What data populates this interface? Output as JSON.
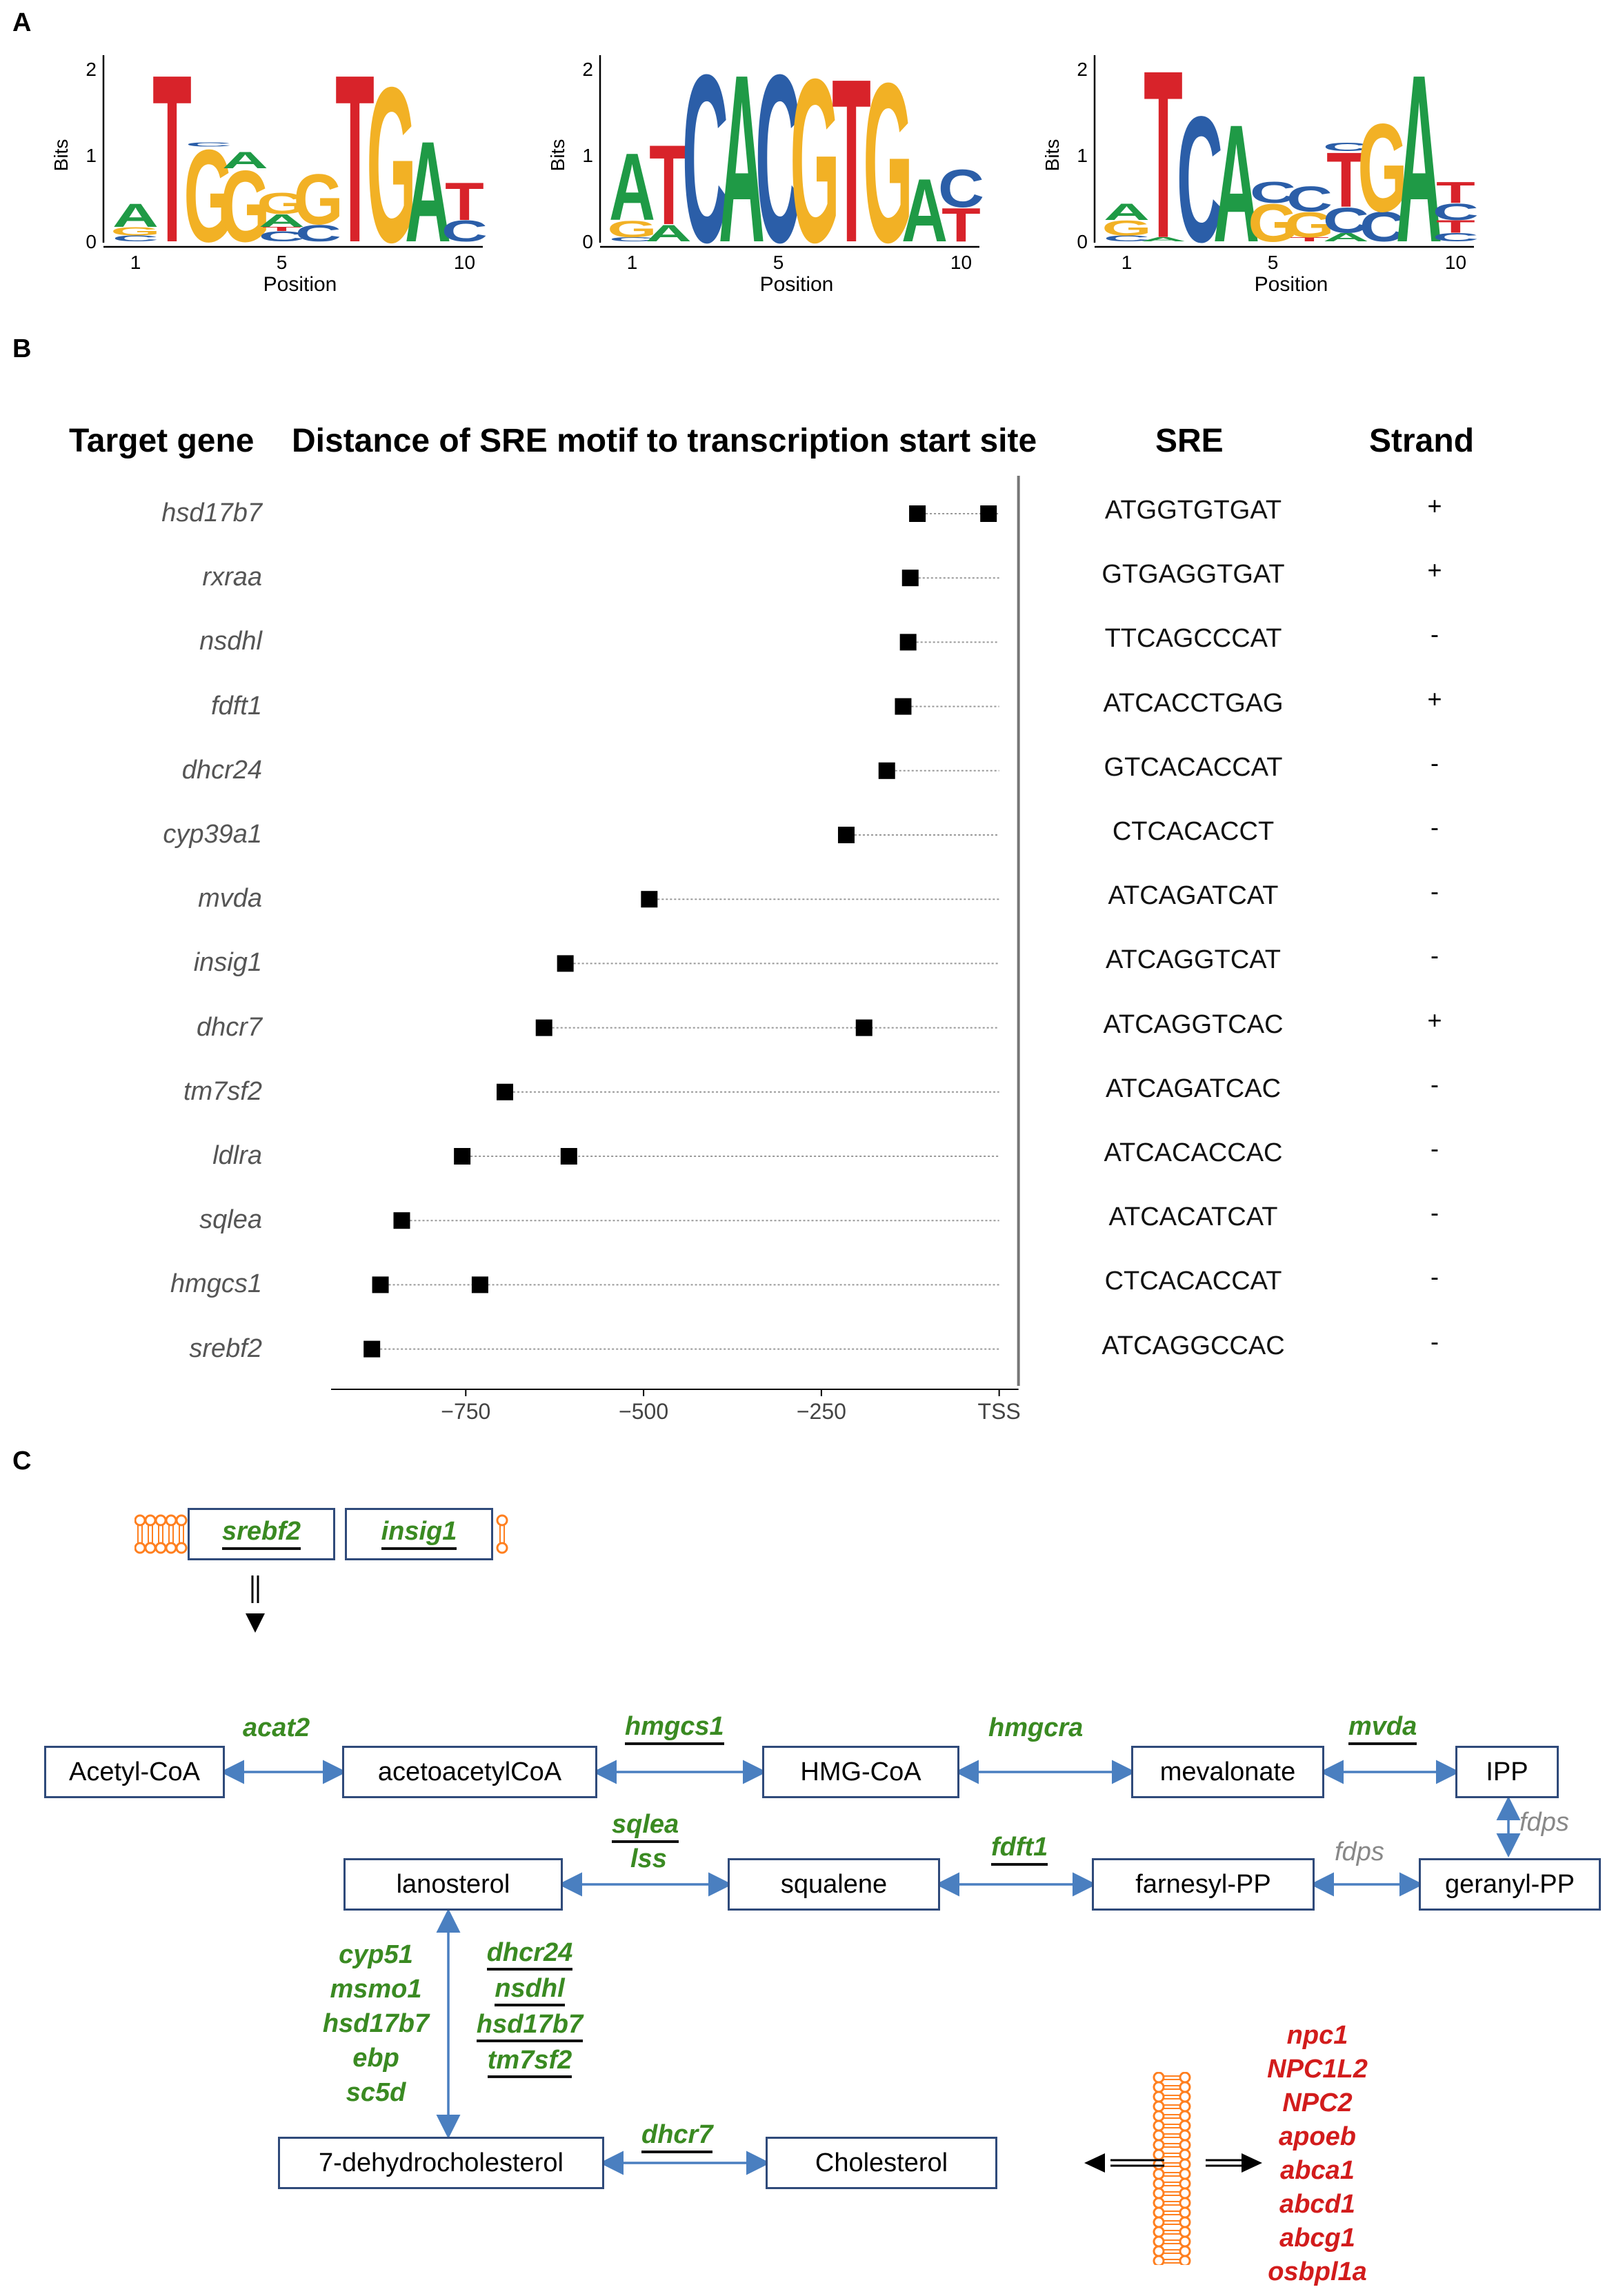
{
  "panel_a": {
    "letter": "A",
    "y_label": "Bits",
    "x_label": "Position",
    "y_ticks": [
      "0",
      "1",
      "2"
    ],
    "x_ticks": [
      "1",
      "5",
      "10"
    ],
    "logos": [
      {
        "letters": [
          [
            [
              "C",
              0.07
            ],
            [
              "G",
              0.1
            ],
            [
              "A",
              0.28
            ]
          ],
          [
            [
              "T",
              2.0
            ]
          ],
          [
            [
              "G",
              1.1
            ],
            [
              "C",
              0.05
            ]
          ],
          [
            [
              "G",
              0.85
            ],
            [
              "A",
              0.2
            ]
          ],
          [
            [
              "C",
              0.12
            ],
            [
              "T",
              0.05
            ],
            [
              "A",
              0.15
            ],
            [
              "G",
              0.25
            ]
          ],
          [
            [
              "C",
              0.2
            ],
            [
              "G",
              0.6
            ]
          ],
          [
            [
              "T",
              2.0
            ]
          ],
          [
            [
              "G",
              1.85
            ]
          ],
          [
            [
              "A",
              1.2
            ]
          ],
          [
            [
              "C",
              0.25
            ],
            [
              "T",
              0.45
            ]
          ]
        ]
      },
      {
        "letters": [
          [
            [
              "C",
              0.05
            ],
            [
              "G",
              0.2
            ],
            [
              "A",
              0.8
            ]
          ],
          [
            [
              "A",
              0.2
            ],
            [
              "T",
              0.95
            ]
          ],
          [
            [
              "C",
              2.0
            ]
          ],
          [
            [
              "A",
              2.0
            ]
          ],
          [
            [
              "C",
              2.0
            ]
          ],
          [
            [
              "G",
              1.95
            ]
          ],
          [
            [
              "T",
              1.95
            ]
          ],
          [
            [
              "G",
              1.9
            ]
          ],
          [
            [
              "A",
              0.75
            ]
          ],
          [
            [
              "T",
              0.4
            ],
            [
              "C",
              0.45
            ]
          ]
        ]
      },
      {
        "letters": [
          [
            [
              "C",
              0.07
            ],
            [
              "G",
              0.18
            ],
            [
              "A",
              0.2
            ]
          ],
          [
            [
              "A",
              0.05
            ],
            [
              "T",
              2.0
            ]
          ],
          [
            [
              "C",
              1.5
            ]
          ],
          [
            [
              "A",
              1.4
            ]
          ],
          [
            [
              "G",
              0.45
            ],
            [
              "C",
              0.25
            ]
          ],
          [
            [
              "T",
              0.05
            ],
            [
              "G",
              0.3
            ],
            [
              "C",
              0.3
            ]
          ],
          [
            [
              "A",
              0.1
            ],
            [
              "C",
              0.3
            ],
            [
              "T",
              0.65
            ],
            [
              "C",
              0.1
            ]
          ],
          [
            [
              "C",
              0.35
            ],
            [
              "G",
              1.05
            ]
          ],
          [
            [
              "A",
              2.0
            ]
          ],
          [
            [
              "C",
              0.1
            ],
            [
              "T",
              0.15
            ],
            [
              "C",
              0.2
            ],
            [
              "T",
              0.25
            ]
          ]
        ]
      }
    ]
  },
  "panel_b": {
    "letter": "B",
    "headers": {
      "target_gene": "Target gene",
      "distance": "Distance of SRE motif to transcription start site",
      "sre": "SRE",
      "strand": "Strand"
    },
    "x_ticks": [
      "−750",
      "−500",
      "−250",
      "TSS"
    ],
    "chart_data": {
      "type": "scatter",
      "xlim": [
        -920,
        0
      ],
      "x_tick_values": [
        -750,
        -500,
        -250,
        0
      ],
      "rows": [
        {
          "gene": "hsd17b7",
          "positions": [
            -115,
            -15
          ],
          "sre": "ATGGTGTGAT",
          "strand": "+"
        },
        {
          "gene": "rxraa",
          "positions": [
            -125
          ],
          "sre": "GTGAGGTGAT",
          "strand": "+"
        },
        {
          "gene": "nsdhl",
          "positions": [
            -128
          ],
          "sre": "TTCAGCCCAT",
          "strand": "-"
        },
        {
          "gene": "fdft1",
          "positions": [
            -135
          ],
          "sre": "ATCACCTGAG",
          "strand": "+"
        },
        {
          "gene": "dhcr24",
          "positions": [
            -158
          ],
          "sre": "GTCACACCAT",
          "strand": "-"
        },
        {
          "gene": "cyp39a1",
          "positions": [
            -215
          ],
          "sre": "CTCACACCT",
          "strand": "-"
        },
        {
          "gene": "mvda",
          "positions": [
            -492
          ],
          "sre": "ATCAGATCAT",
          "strand": "-"
        },
        {
          "gene": "insig1",
          "positions": [
            -610
          ],
          "sre": "ATCAGGTCAT",
          "strand": "-"
        },
        {
          "gene": "dhcr7",
          "positions": [
            -640,
            -190
          ],
          "sre": "ATCAGGTCAC",
          "strand": "+"
        },
        {
          "gene": "tm7sf2",
          "positions": [
            -695
          ],
          "sre": "ATCAGATCAC",
          "strand": "-"
        },
        {
          "gene": "ldlra",
          "positions": [
            -755,
            -605
          ],
          "sre": "ATCACACCAC",
          "strand": "-"
        },
        {
          "gene": "sqlea",
          "positions": [
            -840
          ],
          "sre": "ATCACATCAT",
          "strand": "-"
        },
        {
          "gene": "hmgcs1",
          "positions": [
            -870,
            -730
          ],
          "sre": "CTCACACCAT",
          "strand": "-"
        },
        {
          "gene": "srebf2",
          "positions": [
            -882
          ],
          "sre": "ATCAGGCCAC",
          "strand": "-"
        }
      ]
    }
  },
  "panel_c": {
    "letter": "C",
    "membrane_genes": [
      "srebf2",
      "insig1"
    ],
    "metabolites": {
      "acetyl_coa": "Acetyl-CoA",
      "acetoacetyl_coa": "acetoacetylCoA",
      "hmg_coa": "HMG-CoA",
      "mevalonate": "mevalonate",
      "ipp": "IPP",
      "lanosterol": "lanosterol",
      "squalene": "squalene",
      "farnesyl_pp": "farnesyl-PP",
      "geranyl_pp": "geranyl-PP",
      "dehydrocholesterol": "7-dehydrocholesterol",
      "cholesterol": "Cholesterol"
    },
    "enzymes": {
      "acat2": "acat2",
      "hmgcs1": "hmgcs1",
      "hmgcra": "hmgcra",
      "mvda": "mvda",
      "fdps_v": "fdps",
      "fdps_h": "fdps",
      "sqlea": "sqlea",
      "lss": "lss",
      "fdft1": "fdft1",
      "dhcr7": "dhcr7",
      "left_stack": [
        "cyp51",
        "msmo1",
        "hsd17b7",
        "ebp",
        "sc5d"
      ],
      "right_stack": [
        "dhcr24",
        "nsdhl",
        "hsd17b7",
        "tm7sf2"
      ]
    },
    "transport_genes": [
      "npc1",
      "NPC1L2",
      "NPC2",
      "apoeb",
      "abca1",
      "abcd1",
      "abcg1",
      "osbpl1a"
    ],
    "colors": {
      "sre_gene": "#3a8a22",
      "transport_gene": "#d21c1c",
      "node_border": "#2f4a7a",
      "arrow": "#4a7fc0",
      "membrane": "#ff7f1f"
    }
  }
}
